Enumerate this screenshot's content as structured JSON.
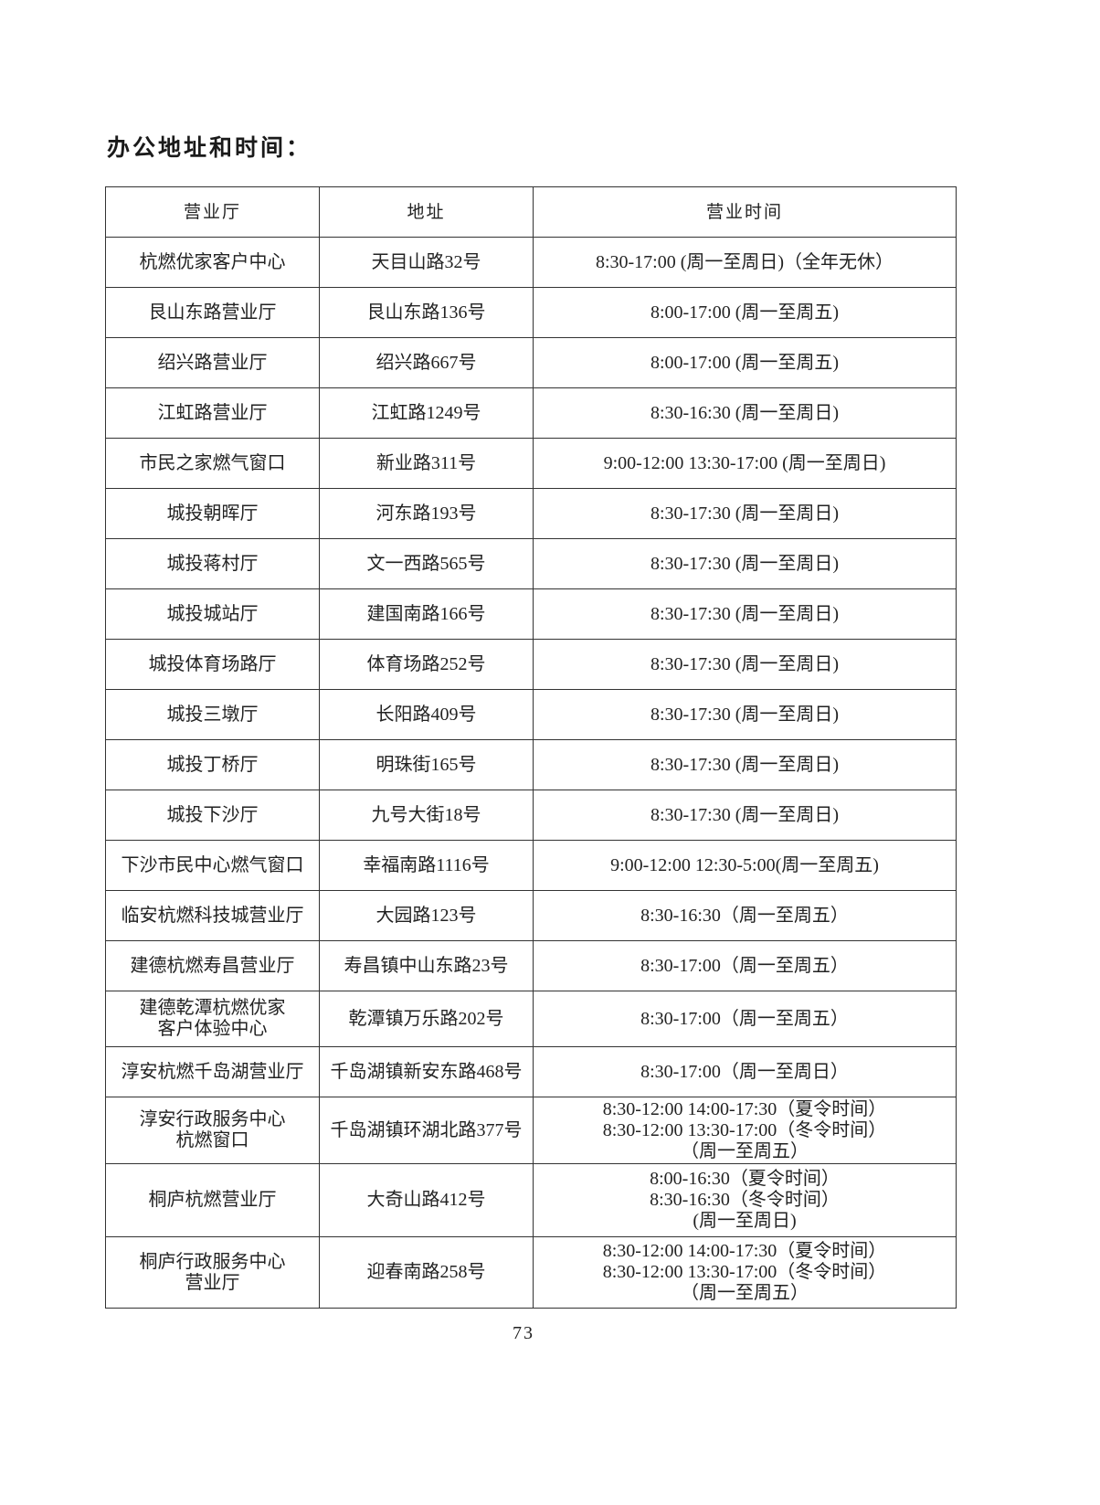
{
  "title": "办公地址和时间：",
  "table": {
    "headers": [
      "营业厅",
      "地址",
      "营业时间"
    ],
    "rows": [
      {
        "hall": [
          "杭燃优家客户中心"
        ],
        "address": "天目山路32号",
        "hours": [
          "8:30-17:00 (周一至周日)（全年无休）"
        ]
      },
      {
        "hall": [
          "艮山东路营业厅"
        ],
        "address": "艮山东路136号",
        "hours": [
          "8:00-17:00 (周一至周五)"
        ]
      },
      {
        "hall": [
          "绍兴路营业厅"
        ],
        "address": "绍兴路667号",
        "hours": [
          "8:00-17:00 (周一至周五)"
        ]
      },
      {
        "hall": [
          "江虹路营业厅"
        ],
        "address": "江虹路1249号",
        "hours": [
          "8:30-16:30 (周一至周日)"
        ]
      },
      {
        "hall": [
          "市民之家燃气窗口"
        ],
        "address": "新业路311号",
        "hours": [
          "9:00-12:00  13:30-17:00 (周一至周日)"
        ]
      },
      {
        "hall": [
          "城投朝晖厅"
        ],
        "address": "河东路193号",
        "hours": [
          "8:30-17:30 (周一至周日)"
        ]
      },
      {
        "hall": [
          "城投蒋村厅"
        ],
        "address": "文一西路565号",
        "hours": [
          "8:30-17:30 (周一至周日)"
        ]
      },
      {
        "hall": [
          "城投城站厅"
        ],
        "address": "建国南路166号",
        "hours": [
          "8:30-17:30 (周一至周日)"
        ]
      },
      {
        "hall": [
          "城投体育场路厅"
        ],
        "address": "体育场路252号",
        "hours": [
          "8:30-17:30 (周一至周日)"
        ]
      },
      {
        "hall": [
          "城投三墩厅"
        ],
        "address": "长阳路409号",
        "hours": [
          "8:30-17:30 (周一至周日)"
        ]
      },
      {
        "hall": [
          "城投丁桥厅"
        ],
        "address": "明珠街165号",
        "hours": [
          "8:30-17:30 (周一至周日)"
        ]
      },
      {
        "hall": [
          "城投下沙厅"
        ],
        "address": "九号大街18号",
        "hours": [
          "8:30-17:30 (周一至周日)"
        ]
      },
      {
        "hall": [
          "下沙市民中心燃气窗口"
        ],
        "address": "幸福南路1116号",
        "hours": [
          "9:00-12:00  12:30-5:00(周一至周五)"
        ]
      },
      {
        "hall": [
          "临安杭燃科技城营业厅"
        ],
        "address": "大园路123号",
        "hours": [
          "8:30-16:30（周一至周五）"
        ]
      },
      {
        "hall": [
          "建德杭燃寿昌营业厅"
        ],
        "address": "寿昌镇中山东路23号",
        "hours": [
          "8:30-17:00（周一至周五）"
        ]
      },
      {
        "hall": [
          "建德乾潭杭燃优家",
          "客户体验中心"
        ],
        "address": "乾潭镇万乐路202号",
        "hours": [
          "8:30-17:00（周一至周五）"
        ]
      },
      {
        "hall": [
          "淳安杭燃千岛湖营业厅"
        ],
        "address": "千岛湖镇新安东路468号",
        "hours": [
          "8:30-17:00（周一至周日）"
        ]
      },
      {
        "hall": [
          "淳安行政服务中心",
          "杭燃窗口"
        ],
        "address": "千岛湖镇环湖北路377号",
        "hours": [
          "8:30-12:00   14:00-17:30（夏令时间）",
          "8:30-12:00   13:30-17:00（冬令时间）",
          "（周一至周五）"
        ]
      },
      {
        "hall": [
          "桐庐杭燃营业厅"
        ],
        "address": "大奇山路412号",
        "hours": [
          "8:00-16:30（夏令时间）",
          "8:30-16:30（冬令时间）",
          "(周一至周日)"
        ]
      },
      {
        "hall": [
          "桐庐行政服务中心",
          "营业厅"
        ],
        "address": "迎春南路258号",
        "hours": [
          "8:30-12:00   14:00-17:30（夏令时间）",
          "8:30-12:00   13:30-17:00（冬令时间）",
          "（周一至周五）"
        ]
      }
    ]
  },
  "page_number": "73"
}
